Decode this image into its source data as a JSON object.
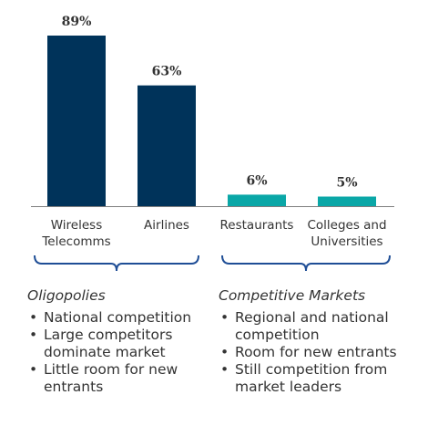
{
  "chart_data": {
    "type": "bar",
    "categories": [
      [
        "Wireless",
        "Telecomms"
      ],
      [
        "Airlines"
      ],
      [
        "Restaurants"
      ],
      [
        "Colleges and",
        "Universities"
      ]
    ],
    "values": [
      89,
      63,
      6,
      5
    ],
    "data_labels": [
      "89%",
      "63%",
      "6%",
      "5%"
    ],
    "ylim": [
      0,
      100
    ],
    "colors": [
      "#00335a",
      "#00335a",
      "#0aa7a7",
      "#0aa7a7"
    ],
    "title": "",
    "xlabel": "",
    "ylabel": "",
    "grid": false
  },
  "groups": [
    {
      "title": "Oligopolies",
      "bracket_color": "#1f4e96",
      "bullets": [
        "National competition",
        "Large competitors dominate market",
        "Little room for new entrants"
      ]
    },
    {
      "title": "Competitive Markets",
      "bracket_color": "#1f4e96",
      "bullets": [
        "Regional and national competition",
        "Room for new entrants",
        "Still competition from market leaders"
      ]
    }
  ]
}
